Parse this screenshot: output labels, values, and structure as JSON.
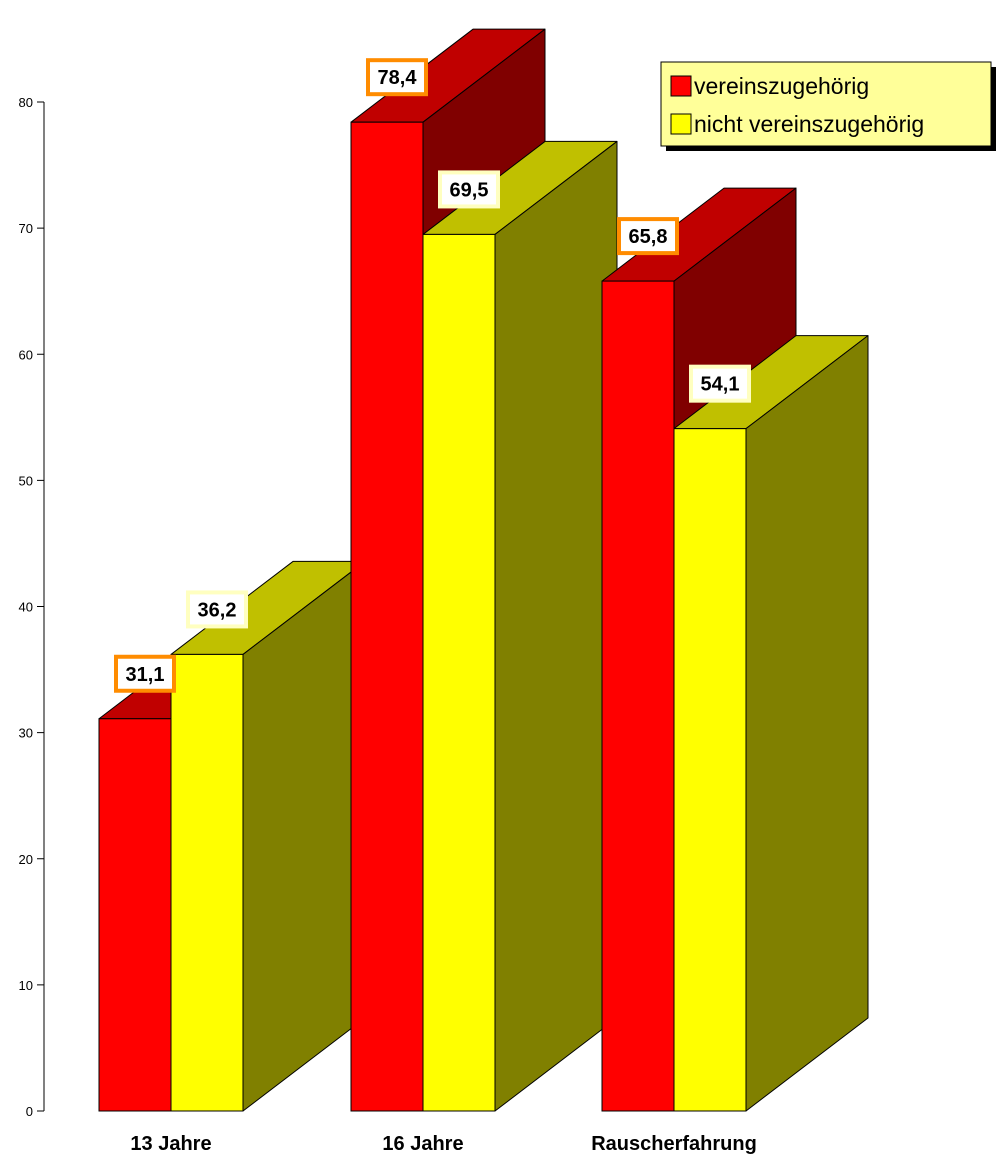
{
  "chart_data": {
    "type": "bar",
    "categories": [
      "13 Jahre",
      "16 Jahre",
      "Rauscherfahrung"
    ],
    "series": [
      {
        "name": "vereinszugehörig",
        "values": [
          31.1,
          78.4,
          65.8
        ],
        "value_labels": [
          "31,1",
          "78,4",
          "65,8"
        ],
        "colors": {
          "front": "#ff0000",
          "top": "#c00000",
          "side": "#800000"
        },
        "label_border": "#ff8c00"
      },
      {
        "name": "nicht vereinszugehörig",
        "values": [
          36.2,
          69.5,
          54.1
        ],
        "value_labels": [
          "36,2",
          "69,5",
          "54,1"
        ],
        "colors": {
          "front": "#ffff00",
          "top": "#c0c000",
          "side": "#808000"
        },
        "label_border": "#ffffc0"
      }
    ],
    "yticks": [
      "0",
      "10",
      "20",
      "30",
      "40",
      "50",
      "60",
      "70",
      "80"
    ],
    "ylim": [
      0,
      80
    ],
    "grid": false,
    "three_d": true,
    "legend_position": "top-right",
    "legend_background": "#ffff99"
  }
}
